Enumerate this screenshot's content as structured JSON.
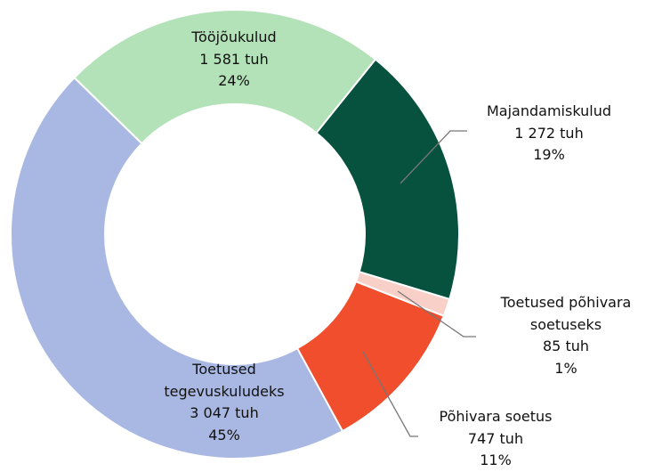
{
  "chart_data": {
    "type": "donut",
    "categories": [
      "Majandamiskulud",
      "Toetused põhivara soetuseks",
      "Põhivara soetus",
      "Toetused tegevuskuludeks",
      "Tööjõukulud"
    ],
    "values": [
      1272,
      85,
      747,
      3047,
      1581
    ],
    "value_labels": [
      "1 272 tuh",
      "85 tuh",
      "747 tuh",
      "3 047 tuh",
      "1 581 tuh"
    ],
    "percent_labels": [
      "19%",
      "1%",
      "11%",
      "45%",
      "24%"
    ],
    "colors": [
      "#07513f",
      "#f9d0c8",
      "#f04e2d",
      "#a9b8e2",
      "#b3e2b8"
    ]
  }
}
